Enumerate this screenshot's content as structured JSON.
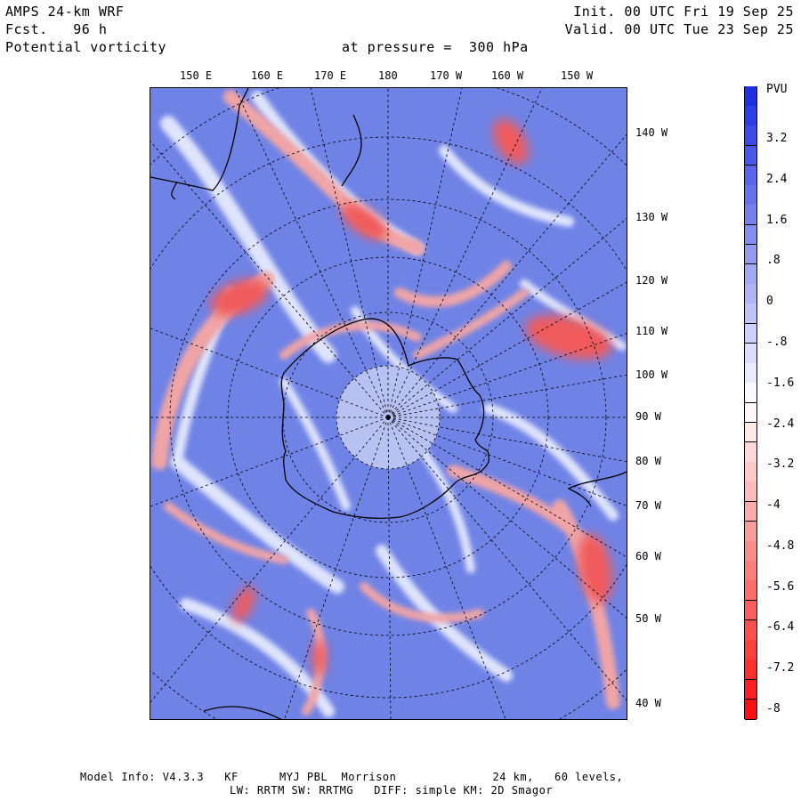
{
  "header": {
    "model": "AMPS 24-km WRF",
    "forecast": "Fcst.   96 h",
    "field": "Potential vorticity",
    "pressure": "at pressure =  300 hPa",
    "init": "Init. 00 UTC Fri 19 Sep 25",
    "valid": "Valid. 00 UTC Tue 23 Sep 25"
  },
  "top_labels": [
    "150 E",
    "160 E",
    "170 E",
    "180",
    "170 W",
    "160 W",
    "150 W"
  ],
  "right_labels": [
    "140 W",
    "130 W",
    "120 W",
    "110 W",
    "100 W",
    "90 W",
    "80 W",
    "70 W",
    "60 W",
    "50 W",
    "40 W"
  ],
  "colorbar": {
    "unit": "PVU",
    "labels": [
      "3.2",
      "2.4",
      "1.6",
      ".8",
      "0",
      "-.8",
      "-1.6",
      "-2.4",
      "-3.2",
      "-4",
      "-4.8",
      "-5.6",
      "-6.4",
      "-7.2",
      "-8"
    ],
    "high_color": "#1f2fe8",
    "low_color": "#ff1010"
  },
  "footer": {
    "line1": "Model Info: V4.3.3   KF      MYJ PBL  Morrison              24 km,   60 levels,",
    "line2": "LW: RRTM SW: RRTMG   DIFF: simple KM: 2D Smagor"
  }
}
